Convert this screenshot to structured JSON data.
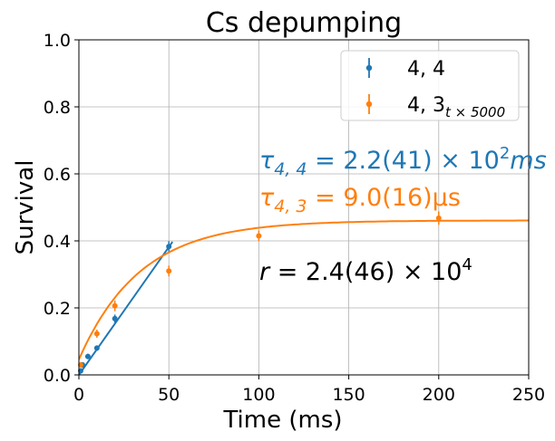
{
  "chart_data": {
    "type": "scatter",
    "title": "Cs depumping",
    "xlabel": "Time (ms)",
    "ylabel": "Survival",
    "xlim": [
      0,
      250
    ],
    "ylim": [
      0,
      1.0
    ],
    "xticks": [
      0,
      50,
      100,
      150,
      200,
      250
    ],
    "yticks": [
      0.0,
      0.2,
      0.4,
      0.6,
      0.8,
      1.0
    ],
    "xtick_labels": [
      "0",
      "50",
      "100",
      "150",
      "200",
      "250"
    ],
    "ytick_labels": [
      "0.0",
      "0.2",
      "0.4",
      "0.6",
      "0.8",
      "1.0"
    ],
    "grid": true,
    "legend_position": "top-right",
    "series": [
      {
        "name": "4, 4",
        "color": "#1f77b4",
        "x": [
          1,
          2,
          5,
          10,
          20,
          50
        ],
        "y": [
          0.012,
          0.03,
          0.055,
          0.08,
          0.168,
          0.383
        ],
        "err": [
          0.008,
          0.008,
          0.008,
          0.008,
          0.012,
          0.016
        ],
        "fit_x": [
          0,
          52
        ],
        "fit_y": [
          0.0,
          0.397
        ]
      },
      {
        "name": "4, 3",
        "name_subscript": "t × 5000",
        "color": "#ff7f0e",
        "x": [
          1,
          10,
          20,
          50,
          100,
          200
        ],
        "y": [
          0.03,
          0.123,
          0.206,
          0.31,
          0.415,
          0.468
        ],
        "err": [
          0.008,
          0.012,
          0.016,
          0.016,
          0.016,
          0.02
        ],
        "fit": {
          "a": 0.461,
          "b": 0.415,
          "tau": 34
        }
      }
    ],
    "annotations": [
      {
        "id": "tau44",
        "prefix": "τ",
        "sub": "4, 4",
        "body": " = 2.2(41) × 10",
        "sup": "2",
        "tail": "ms",
        "color": "#1f77b4"
      },
      {
        "id": "tau43",
        "prefix": "τ",
        "sub": "4, 3",
        "body": " = 9.0(16)μs",
        "color": "#ff7f0e"
      },
      {
        "id": "ratio",
        "prefix": "r",
        "body": " = 2.4(46) × 10",
        "sup": "4",
        "color": "#000000"
      }
    ]
  }
}
